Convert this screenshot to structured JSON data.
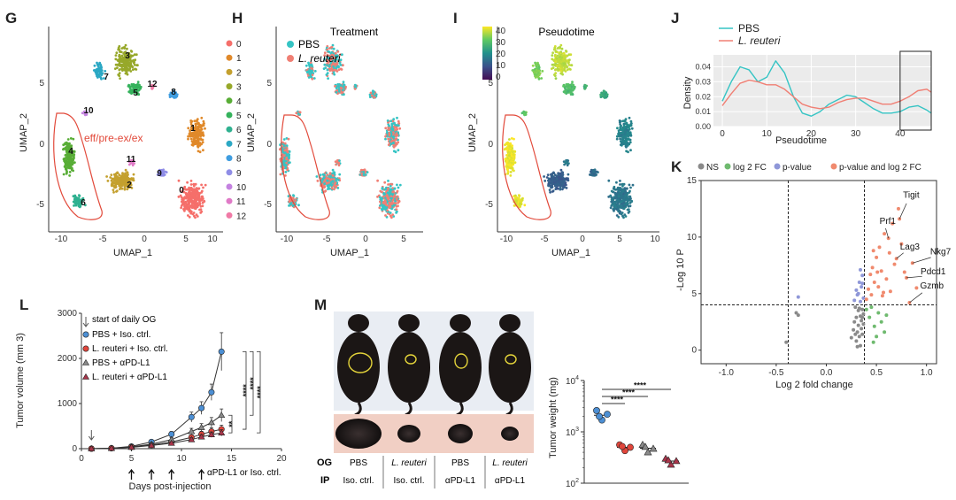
{
  "panels": {
    "G": "G",
    "H": "H",
    "I": "I",
    "J": "J",
    "K": "K",
    "L": "L",
    "M": "M"
  },
  "colors": {
    "pbs_teal": "#35c4c4",
    "reuteri_salmon": "#f07f74",
    "volcano_ns": "#8a8a8a",
    "volcano_fc": "#6fba6f",
    "volcano_p": "#8f97d8",
    "volcano_both": "#f08a6e",
    "group_pbs": "#4c8fd4",
    "group_reuteri": "#e0453b",
    "group_pdl1": "#8a8a8a",
    "group_reuteri_pdl1": "#a8354a"
  },
  "umap": {
    "xlabel": "UMAP_1",
    "ylabel": "UMAP_2",
    "x_ticks": [
      "-10",
      "-5",
      "0",
      "5",
      "10"
    ],
    "y_ticks": [
      "5",
      "0",
      "-5"
    ],
    "annotation": "eff/pre-ex/ex",
    "cluster_labels": [
      "0",
      "1",
      "2",
      "3",
      "4",
      "5",
      "6",
      "7",
      "8",
      "9",
      "10",
      "11",
      "12"
    ],
    "cluster_colors": [
      "#f56f6a",
      "#e0892a",
      "#c4a02e",
      "#97a82a",
      "#58ad36",
      "#35b25c",
      "#2fb190",
      "#2ba8c4",
      "#3f9de0",
      "#8f8de6",
      "#c482e0",
      "#e07ac7",
      "#f07aa6"
    ],
    "treatment_title": "Treatment",
    "treatment_legend": [
      "PBS",
      "L. reuteri"
    ],
    "pseudotime_title": "Pseudotime",
    "pseudotime_ticks": [
      "40",
      "30",
      "20",
      "10",
      "0"
    ]
  },
  "chart_data": [
    {
      "panel": "J",
      "type": "line",
      "title": "",
      "xlabel": "Pseudotime",
      "ylabel": "Density",
      "xlim": [
        -2,
        47
      ],
      "ylim": [
        0,
        0.048
      ],
      "x_ticks": [
        "0",
        "10",
        "20",
        "30",
        "40"
      ],
      "y_ticks": [
        "0.00",
        "0.01",
        "0.02",
        "0.03",
        "0.04"
      ],
      "grid": true,
      "legend_position": "top-left",
      "highlight_box_x": [
        40,
        47
      ],
      "series": [
        {
          "name": "PBS",
          "x": [
            0,
            2,
            4,
            6,
            8,
            10,
            12,
            14,
            16,
            18,
            20,
            22,
            24,
            26,
            28,
            30,
            32,
            34,
            36,
            38,
            40,
            42,
            44,
            46,
            47
          ],
          "values": [
            0.017,
            0.03,
            0.04,
            0.038,
            0.03,
            0.033,
            0.044,
            0.036,
            0.02,
            0.009,
            0.007,
            0.01,
            0.015,
            0.018,
            0.021,
            0.02,
            0.016,
            0.012,
            0.009,
            0.009,
            0.01,
            0.013,
            0.014,
            0.011,
            0.009
          ]
        },
        {
          "name": "L. reuteri",
          "x": [
            0,
            2,
            4,
            6,
            8,
            10,
            12,
            14,
            16,
            18,
            20,
            22,
            24,
            26,
            28,
            30,
            32,
            34,
            36,
            38,
            40,
            42,
            44,
            46,
            47
          ],
          "values": [
            0.014,
            0.022,
            0.029,
            0.031,
            0.03,
            0.028,
            0.028,
            0.025,
            0.02,
            0.015,
            0.013,
            0.012,
            0.013,
            0.016,
            0.018,
            0.019,
            0.019,
            0.017,
            0.015,
            0.015,
            0.017,
            0.02,
            0.024,
            0.025,
            0.023
          ]
        }
      ]
    },
    {
      "panel": "K",
      "type": "scatter",
      "title": "",
      "xlabel": "Log 2 fold change",
      "ylabel": "-Log 10 P",
      "xlim": [
        -1.25,
        1.1
      ],
      "ylim": [
        -1.2,
        15
      ],
      "x_ticks": [
        "-1.0",
        "-0.5",
        "0.0",
        "0.5",
        "1.0"
      ],
      "y_ticks": [
        "15",
        "10",
        "5",
        "0"
      ],
      "fc_cutoff": 0.38,
      "p_cutoff": 4.0,
      "legend": [
        "NS",
        "log 2 FC",
        "p-value",
        "p-value and log 2 FC"
      ],
      "gene_labels": [
        {
          "gene": "Tigit",
          "x": 0.73,
          "y": 11.6
        },
        {
          "gene": "Prf1",
          "x": 0.62,
          "y": 9.9
        },
        {
          "gene": "Lag3",
          "x": 0.7,
          "y": 8.1
        },
        {
          "gene": "Nkg7",
          "x": 0.86,
          "y": 7.7
        },
        {
          "gene": "Pdcd1",
          "x": 0.8,
          "y": 6.4
        },
        {
          "gene": "Gzmb",
          "x": 0.83,
          "y": 4.2
        }
      ],
      "ns_points": [
        [
          -0.4,
          0.7
        ],
        [
          -0.3,
          3.3
        ],
        [
          -0.28,
          3.1
        ],
        [
          0.25,
          1.1
        ],
        [
          0.27,
          1.8
        ],
        [
          0.28,
          2.5
        ],
        [
          0.3,
          0.8
        ],
        [
          0.3,
          2.9
        ],
        [
          0.31,
          1.6
        ],
        [
          0.32,
          3.5
        ],
        [
          0.32,
          2.2
        ],
        [
          0.33,
          1.2
        ],
        [
          0.34,
          3.0
        ],
        [
          0.34,
          0.4
        ],
        [
          0.35,
          2.6
        ],
        [
          0.35,
          1.9
        ],
        [
          0.36,
          3.6
        ],
        [
          0.36,
          1.4
        ],
        [
          0.37,
          2.3
        ],
        [
          0.37,
          3.2
        ],
        [
          0.29,
          3.8
        ],
        [
          0.33,
          3.7
        ],
        [
          0.31,
          0.3
        ],
        [
          0.29,
          1.4
        ],
        [
          0.36,
          2.9
        ]
      ],
      "fc_points": [
        [
          0.4,
          3.6
        ],
        [
          0.43,
          2.9
        ],
        [
          0.45,
          3.8
        ],
        [
          0.48,
          2.1
        ],
        [
          0.5,
          1.2
        ],
        [
          0.52,
          3.3
        ],
        [
          0.55,
          2.5
        ],
        [
          0.58,
          1.6
        ],
        [
          0.6,
          3.1
        ],
        [
          0.47,
          0.7
        ]
      ],
      "p_points": [
        [
          -0.28,
          4.7
        ],
        [
          0.28,
          4.4
        ],
        [
          0.3,
          5.3
        ],
        [
          0.31,
          4.9
        ],
        [
          0.33,
          6.0
        ],
        [
          0.34,
          4.3
        ],
        [
          0.35,
          5.6
        ],
        [
          0.36,
          6.6
        ],
        [
          0.34,
          7.1
        ],
        [
          0.37,
          4.6
        ],
        [
          0.32,
          5.0
        ],
        [
          0.36,
          5.9
        ]
      ],
      "both_points": [
        [
          0.4,
          4.5
        ],
        [
          0.42,
          5.4
        ],
        [
          0.44,
          6.7
        ],
        [
          0.45,
          4.9
        ],
        [
          0.46,
          7.3
        ],
        [
          0.48,
          6.0
        ],
        [
          0.5,
          8.2
        ],
        [
          0.52,
          5.6
        ],
        [
          0.53,
          9.1
        ],
        [
          0.55,
          7.0
        ],
        [
          0.56,
          4.8
        ],
        [
          0.58,
          10.3
        ],
        [
          0.6,
          6.3
        ],
        [
          0.62,
          9.9
        ],
        [
          0.63,
          8.6
        ],
        [
          0.64,
          5.2
        ],
        [
          0.66,
          11.2
        ],
        [
          0.68,
          7.6
        ],
        [
          0.7,
          8.1
        ],
        [
          0.72,
          12.5
        ],
        [
          0.73,
          11.6
        ],
        [
          0.75,
          9.4
        ],
        [
          0.78,
          6.9
        ],
        [
          0.8,
          6.4
        ],
        [
          0.83,
          4.2
        ],
        [
          0.86,
          7.7
        ],
        [
          0.9,
          5.5
        ],
        [
          0.47,
          8.8
        ],
        [
          0.51,
          6.9
        ],
        [
          0.57,
          5.1
        ]
      ]
    },
    {
      "panel": "L",
      "type": "line",
      "title": "",
      "xlabel": "Days post-injection",
      "ylabel": "Tumor volume (mm 3)",
      "xlim": [
        0,
        20
      ],
      "ylim": [
        0,
        3000
      ],
      "x_ticks": [
        "0",
        "5",
        "10",
        "15",
        "20"
      ],
      "y_ticks": [
        "0",
        "1000",
        "2000",
        "3000"
      ],
      "legend_header": "start of daily OG",
      "legend_position": "top-left",
      "injection_days": [
        5,
        7,
        9,
        12
      ],
      "injection_note": "αPD-L1 or Iso. ctrl.",
      "significance": [
        "**",
        "****",
        "****",
        "****"
      ],
      "x": [
        1,
        3,
        5,
        7,
        9,
        11,
        12,
        13,
        14
      ],
      "series": [
        {
          "name": "PBS + Iso. ctrl.",
          "values": [
            0,
            10,
            50,
            150,
            320,
            700,
            900,
            1250,
            2150
          ],
          "errors": [
            0,
            5,
            15,
            30,
            60,
            110,
            140,
            180,
            420
          ]
        },
        {
          "name": "L. reuteri + Iso. ctrl.",
          "values": [
            0,
            8,
            35,
            80,
            150,
            250,
            320,
            380,
            430
          ],
          "errors": [
            0,
            4,
            10,
            20,
            35,
            55,
            65,
            80,
            90
          ]
        },
        {
          "name": "PBS + αPD-L1",
          "values": [
            0,
            9,
            40,
            100,
            200,
            380,
            470,
            580,
            740
          ],
          "errors": [
            0,
            4,
            12,
            22,
            45,
            70,
            85,
            110,
            140
          ]
        },
        {
          "name": "L. reuteri + αPD-L1",
          "values": [
            0,
            7,
            30,
            70,
            120,
            200,
            260,
            310,
            350
          ],
          "errors": [
            0,
            3,
            8,
            18,
            30,
            45,
            55,
            60,
            70
          ]
        }
      ]
    },
    {
      "panel": "M",
      "type": "scatter",
      "title": "",
      "xlabel": "",
      "ylabel": "Tumor weight (mg)",
      "scale": "log",
      "ylim": [
        100,
        10000
      ],
      "y_ticks": [
        "10 2",
        "10 3",
        "10 4"
      ],
      "significance": [
        "****",
        "****",
        "****"
      ],
      "groups": [
        {
          "name": "PBS + Iso. ctrl.",
          "values": [
            2600,
            2200,
            1700,
            2000
          ],
          "mean": 2100
        },
        {
          "name": "L. reuteri + Iso. ctrl.",
          "values": [
            560,
            500,
            430,
            520
          ],
          "mean": 500
        },
        {
          "name": "PBS + αPD-L1",
          "values": [
            560,
            470,
            400,
            510
          ],
          "mean": 480
        },
        {
          "name": "L. reuteri + αPD-L1",
          "values": [
            300,
            270,
            230,
            280
          ],
          "mean": 270
        }
      ]
    }
  ],
  "photo_table": {
    "row_labels": [
      "OG",
      "IP"
    ],
    "og": [
      "PBS",
      "L. reuteri",
      "PBS",
      "L. reuteri"
    ],
    "ip": [
      "Iso. ctrl.",
      "Iso. ctrl.",
      "αPD-L1",
      "αPD-L1"
    ]
  }
}
